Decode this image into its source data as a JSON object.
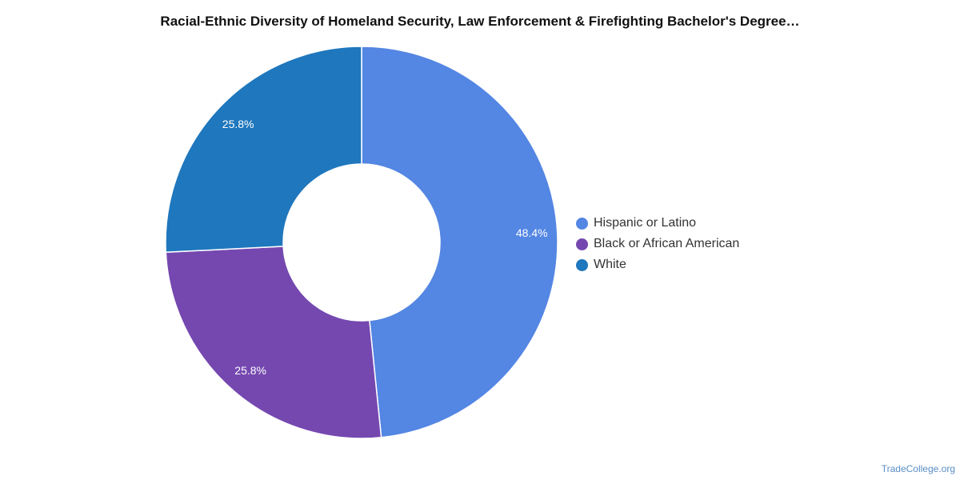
{
  "chart_data": {
    "type": "pie",
    "title": "Racial-Ethnic Diversity of Homeland Security, Law Enforcement & Firefighting Bachelor's Degree…",
    "categories": [
      "Hispanic or Latino",
      "Black or African American",
      "White"
    ],
    "values": [
      48.4,
      25.8,
      25.8
    ],
    "value_labels": [
      "48.4%",
      "25.8%",
      "25.8%"
    ],
    "colors": [
      "#5486e3",
      "#7548b0",
      "#1f77bd"
    ],
    "donut": true,
    "legend_position": "right"
  },
  "watermark": "TradeCollege.org"
}
